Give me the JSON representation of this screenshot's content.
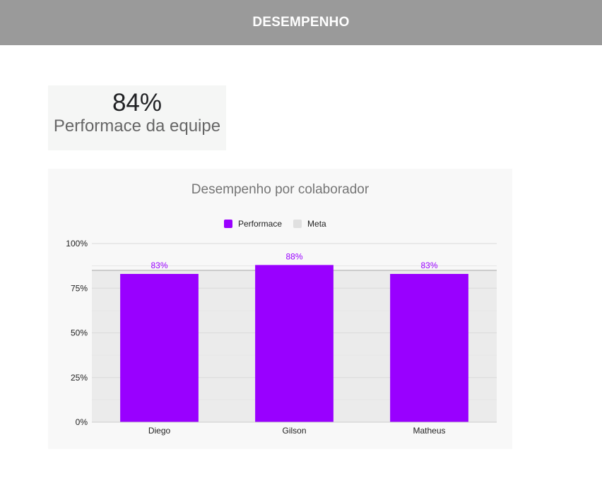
{
  "header": {
    "title": "DESEMPENHO"
  },
  "kpi": {
    "value": "84%",
    "label": "Performace da equipe"
  },
  "colors": {
    "performance": "#9900ff",
    "meta": "#e0e0e0",
    "header_bg": "#9a9a9a"
  },
  "chart_data": {
    "type": "bar",
    "title": "Desempenho por colaborador",
    "categories": [
      "Diego",
      "Gilson",
      "Matheus"
    ],
    "series": [
      {
        "name": "Performace",
        "values": [
          83,
          88,
          83
        ],
        "color": "#9900ff"
      },
      {
        "name": "Meta",
        "values": [
          85,
          85,
          85
        ],
        "color": "#e0e0e0"
      }
    ],
    "data_labels": [
      "83%",
      "88%",
      "83%"
    ],
    "y_ticks": [
      "0%",
      "25%",
      "50%",
      "75%",
      "100%"
    ],
    "ylim": [
      0,
      100
    ],
    "y_unit": "%",
    "grid": true,
    "legend_position": "top"
  }
}
